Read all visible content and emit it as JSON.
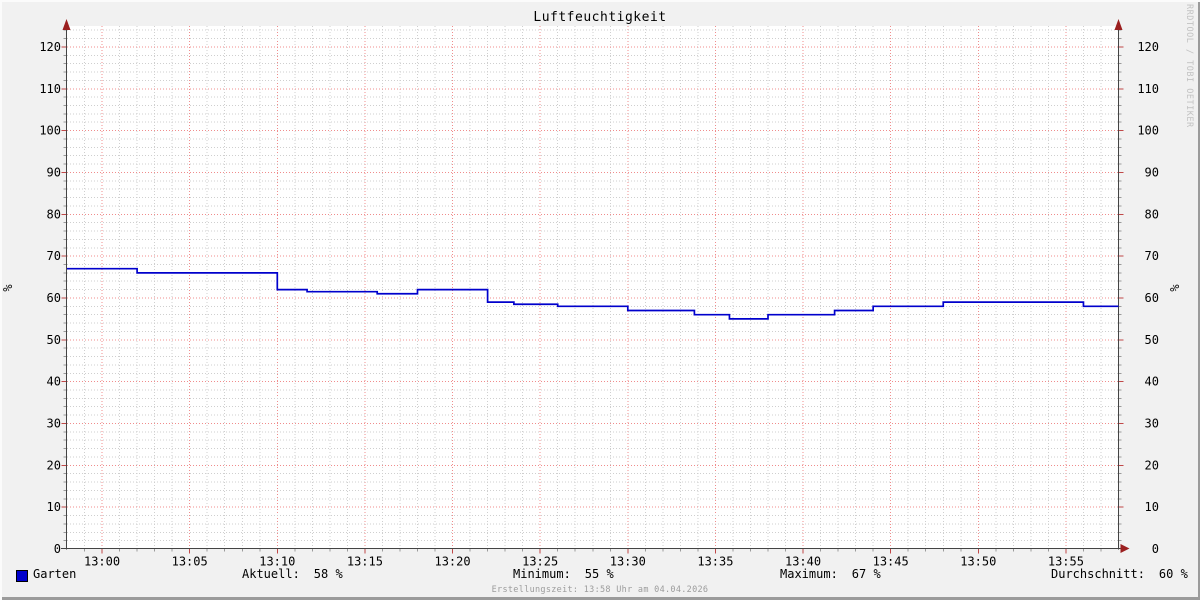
{
  "title": "Luftfeuchtigkeit",
  "watermark": "RRDTOOL / TOBI OETIKER",
  "footer": "Erstellungszeit: 13:58 Uhr am 04.04.2026",
  "legend": {
    "series_label": "Garten",
    "stats": [
      {
        "label": "Aktuell:",
        "value": "58 %"
      },
      {
        "label": "Minimum:",
        "value": "55 %"
      },
      {
        "label": "Maximum:",
        "value": "67 %"
      },
      {
        "label": "Durchschnitt:",
        "value": "60 %"
      }
    ]
  },
  "colors": {
    "line": "#0000cc",
    "legend_swatch": "#0000cc",
    "grid_major": "#f08c8c",
    "grid_minor": "#cfcfcf",
    "axis": "#444444",
    "arrow": "#9b1f1f",
    "tick_major": "#c04848",
    "tick_minor": "#9a9a9a",
    "canvas": "#ffffff",
    "background": "#f1f1f1",
    "watermark": "#c2c2c2",
    "footer": "#9c9c9c"
  },
  "chart_data": {
    "type": "line",
    "title": "Luftfeuchtigkeit",
    "ylabel": "%",
    "ylabel_right": "%",
    "ylim": [
      0,
      125
    ],
    "y_major_step": 10,
    "y_minor_step": 2,
    "y_tick_labels": [
      0,
      10,
      20,
      30,
      40,
      50,
      60,
      70,
      80,
      90,
      100,
      110,
      120
    ],
    "x_start": "12:58",
    "x_end": "13:58",
    "x_minor_step_minutes": 1,
    "x_major_step_minutes": 5,
    "x_tick_labels": [
      "13:00",
      "13:05",
      "13:10",
      "13:15",
      "13:20",
      "13:25",
      "13:30",
      "13:35",
      "13:40",
      "13:45",
      "13:50",
      "13:55"
    ],
    "grid": true,
    "legend_position": "bottom",
    "series": [
      {
        "name": "Garten",
        "color": "#0000cc",
        "unit": "%",
        "x_unit": "minutes_after_x_start",
        "step_points": [
          [
            0,
            67
          ],
          [
            4,
            66
          ],
          [
            12,
            62
          ],
          [
            13.7,
            61.5
          ],
          [
            17.7,
            61
          ],
          [
            20,
            62
          ],
          [
            24,
            59
          ],
          [
            25.5,
            58.5
          ],
          [
            28,
            58
          ],
          [
            32,
            57
          ],
          [
            35.8,
            56
          ],
          [
            37.8,
            55
          ],
          [
            40,
            56
          ],
          [
            43.8,
            57
          ],
          [
            46,
            58
          ],
          [
            50,
            59
          ],
          [
            58,
            58
          ]
        ],
        "aktuell": 58,
        "minimum": 55,
        "maximum": 67,
        "durchschnitt": 60
      }
    ]
  }
}
